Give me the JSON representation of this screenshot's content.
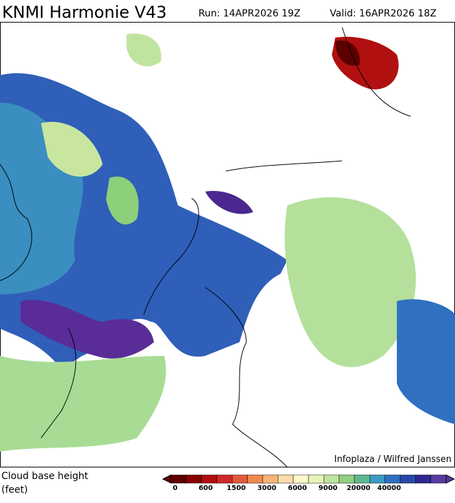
{
  "header": {
    "title": "KNMI Harmonie V43",
    "run": "Run: 14APR2026 19Z",
    "valid": "Valid: 16APR2026 18Z"
  },
  "map": {
    "credit": "Infoplaza / Wilfred Janssen"
  },
  "legend": {
    "title": "Cloud base height",
    "unit": "(feet)",
    "colors": [
      "#5c0000",
      "#8b0000",
      "#b01010",
      "#d02828",
      "#e25a3a",
      "#f08a50",
      "#f6b478",
      "#fadca8",
      "#fdf8cc",
      "#e6f4b8",
      "#c0e4a0",
      "#90d080",
      "#60b890",
      "#3c9cc0",
      "#2c70c0",
      "#2848a8",
      "#302890",
      "#5a3aa0"
    ],
    "labels": [
      "0",
      "600",
      "1500",
      "3000",
      "6000",
      "9000",
      "20000",
      "40000"
    ]
  }
}
